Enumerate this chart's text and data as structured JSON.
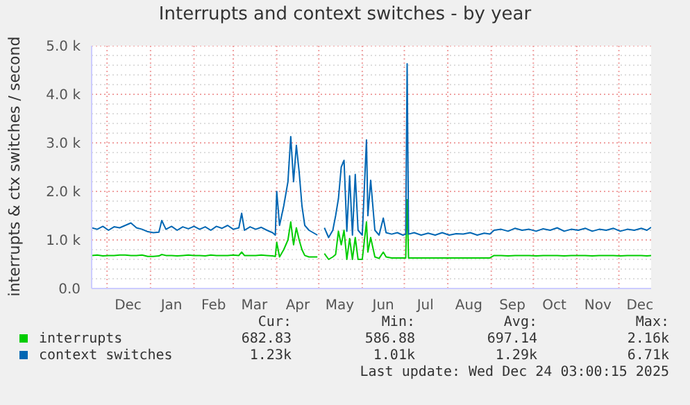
{
  "chart_data": {
    "type": "line",
    "title": "Interrupts and context switches - by year",
    "ylabel": "interrupts & ctx switches / second",
    "x": [
      "2024-11-20",
      "2024-11-24",
      "2024-11-28",
      "2024-12-02",
      "2024-12-06",
      "2024-12-10",
      "2024-12-14",
      "2024-12-18",
      "2024-12-22",
      "2024-12-26",
      "2024-12-30",
      "2025-01-03",
      "2025-01-07",
      "2025-01-09",
      "2025-01-12",
      "2025-01-16",
      "2025-01-20",
      "2025-01-24",
      "2025-01-28",
      "2025-02-01",
      "2025-02-05",
      "2025-02-09",
      "2025-02-13",
      "2025-02-17",
      "2025-02-21",
      "2025-02-25",
      "2025-03-01",
      "2025-03-05",
      "2025-03-07",
      "2025-03-09",
      "2025-03-13",
      "2025-03-17",
      "2025-03-21",
      "2025-03-25",
      "2025-03-29",
      "2025-03-31",
      "2025-04-01",
      "2025-04-03",
      "2025-04-06",
      "2025-04-09",
      "2025-04-11",
      "2025-04-13",
      "2025-04-15",
      "2025-04-17",
      "2025-04-19",
      "2025-04-21",
      "2025-04-24",
      "2025-04-27",
      "2025-04-30",
      "2025-05-02",
      "2025-05-05",
      "2025-05-08",
      "2025-05-11",
      "2025-05-13",
      "2025-05-15",
      "2025-05-17",
      "2025-05-19",
      "2025-05-21",
      "2025-05-23",
      "2025-05-25",
      "2025-05-27",
      "2025-05-29",
      "2025-06-01",
      "2025-06-04",
      "2025-06-05",
      "2025-06-07",
      "2025-06-10",
      "2025-06-13",
      "2025-06-16",
      "2025-06-18",
      "2025-06-22",
      "2025-06-26",
      "2025-06-30",
      "2025-07-02",
      "2025-07-03",
      "2025-07-04",
      "2025-07-08",
      "2025-07-13",
      "2025-07-18",
      "2025-07-23",
      "2025-07-28",
      "2025-08-02",
      "2025-08-07",
      "2025-08-12",
      "2025-08-17",
      "2025-08-22",
      "2025-08-27",
      "2025-08-31",
      "2025-09-03",
      "2025-09-08",
      "2025-09-13",
      "2025-09-18",
      "2025-09-23",
      "2025-09-28",
      "2025-10-03",
      "2025-10-08",
      "2025-10-13",
      "2025-10-18",
      "2025-10-23",
      "2025-10-28",
      "2025-11-02",
      "2025-11-07",
      "2025-11-12",
      "2025-11-17",
      "2025-11-22",
      "2025-11-27",
      "2025-12-02",
      "2025-12-07",
      "2025-12-12",
      "2025-12-17",
      "2025-12-21",
      "2025-12-24"
    ],
    "series": [
      {
        "name": "interrupts",
        "color": "#00cc00",
        "values": [
          680,
          690,
          670,
          680,
          680,
          690,
          690,
          680,
          680,
          690,
          660,
          660,
          670,
          700,
          680,
          680,
          670,
          680,
          690,
          680,
          680,
          670,
          690,
          680,
          680,
          680,
          690,
          680,
          750,
          680,
          680,
          680,
          690,
          680,
          670,
          660,
          950,
          650,
          800,
          1000,
          1370,
          900,
          1250,
          1000,
          800,
          680,
          650,
          650,
          650,
          null,
          720,
          600,
          650,
          700,
          1180,
          900,
          1200,
          600,
          1030,
          600,
          1050,
          600,
          600,
          1370,
          750,
          1050,
          650,
          620,
          750,
          650,
          630,
          630,
          630,
          630,
          1830,
          630,
          630,
          630,
          630,
          630,
          630,
          630,
          630,
          630,
          630,
          630,
          630,
          630,
          680,
          680,
          670,
          680,
          680,
          680,
          670,
          680,
          680,
          680,
          670,
          680,
          680,
          680,
          670,
          680,
          680,
          680,
          670,
          680,
          680,
          680,
          670,
          680
        ]
      },
      {
        "name": "context switches",
        "color": "#0066b3",
        "values": [
          1250,
          1220,
          1280,
          1200,
          1270,
          1250,
          1300,
          1350,
          1250,
          1220,
          1170,
          1150,
          1160,
          1400,
          1220,
          1280,
          1200,
          1270,
          1230,
          1280,
          1220,
          1270,
          1200,
          1280,
          1240,
          1300,
          1220,
          1250,
          1550,
          1200,
          1270,
          1220,
          1260,
          1200,
          1150,
          1100,
          2000,
          1300,
          1700,
          2200,
          3130,
          2200,
          2950,
          2400,
          1700,
          1300,
          1200,
          1150,
          1100,
          null,
          1250,
          1050,
          1200,
          1500,
          1850,
          2500,
          2640,
          1180,
          2320,
          1100,
          2350,
          1200,
          1100,
          3060,
          1500,
          2230,
          1200,
          1100,
          1450,
          1150,
          1120,
          1150,
          1100,
          1120,
          4630,
          1120,
          1150,
          1100,
          1140,
          1100,
          1150,
          1100,
          1130,
          1120,
          1150,
          1100,
          1140,
          1120,
          1200,
          1220,
          1180,
          1240,
          1200,
          1220,
          1180,
          1230,
          1200,
          1250,
          1180,
          1220,
          1200,
          1240,
          1180,
          1220,
          1200,
          1240,
          1180,
          1220,
          1200,
          1240,
          1200,
          1260
        ]
      }
    ],
    "xlim": [
      "2024-11-20",
      "2025-12-24"
    ],
    "xticks": [
      {
        "value": "2024-12-01",
        "label": null
      },
      {
        "value": "2024-12-16",
        "label": "Dec"
      },
      {
        "value": "2025-01-01",
        "label": null
      },
      {
        "value": "2025-01-16",
        "label": "Jan"
      },
      {
        "value": "2025-02-01",
        "label": null
      },
      {
        "value": "2025-02-15",
        "label": "Feb"
      },
      {
        "value": "2025-03-01",
        "label": null
      },
      {
        "value": "2025-03-16",
        "label": "Mar"
      },
      {
        "value": "2025-04-01",
        "label": null
      },
      {
        "value": "2025-04-16",
        "label": "Apr"
      },
      {
        "value": "2025-05-01",
        "label": null
      },
      {
        "value": "2025-05-16",
        "label": "May"
      },
      {
        "value": "2025-06-01",
        "label": null
      },
      {
        "value": "2025-06-16",
        "label": "Jun"
      },
      {
        "value": "2025-07-01",
        "label": null
      },
      {
        "value": "2025-07-16",
        "label": "Jul"
      },
      {
        "value": "2025-08-01",
        "label": null
      },
      {
        "value": "2025-08-16",
        "label": "Aug"
      },
      {
        "value": "2025-09-01",
        "label": null
      },
      {
        "value": "2025-09-16",
        "label": "Sep"
      },
      {
        "value": "2025-10-01",
        "label": null
      },
      {
        "value": "2025-10-16",
        "label": "Oct"
      },
      {
        "value": "2025-11-01",
        "label": null
      },
      {
        "value": "2025-11-16",
        "label": "Nov"
      },
      {
        "value": "2025-12-01",
        "label": null
      },
      {
        "value": "2025-12-16",
        "label": "Dec"
      }
    ],
    "ylim": [
      0,
      5000
    ],
    "yticks": [
      {
        "value": 0,
        "label": "0.0"
      },
      {
        "value": 200,
        "label": null
      },
      {
        "value": 400,
        "label": null
      },
      {
        "value": 600,
        "label": null
      },
      {
        "value": 800,
        "label": null
      },
      {
        "value": 1000,
        "label": "1.0 k"
      },
      {
        "value": 1200,
        "label": null
      },
      {
        "value": 1400,
        "label": null
      },
      {
        "value": 1600,
        "label": null
      },
      {
        "value": 1800,
        "label": null
      },
      {
        "value": 2000,
        "label": "2.0 k"
      },
      {
        "value": 2200,
        "label": null
      },
      {
        "value": 2400,
        "label": null
      },
      {
        "value": 2600,
        "label": null
      },
      {
        "value": 2800,
        "label": null
      },
      {
        "value": 3000,
        "label": "3.0 k"
      },
      {
        "value": 3200,
        "label": null
      },
      {
        "value": 3400,
        "label": null
      },
      {
        "value": 3600,
        "label": null
      },
      {
        "value": 3800,
        "label": null
      },
      {
        "value": 4000,
        "label": "4.0 k"
      },
      {
        "value": 4200,
        "label": null
      },
      {
        "value": 4400,
        "label": null
      },
      {
        "value": 4600,
        "label": null
      },
      {
        "value": 4800,
        "label": null
      },
      {
        "value": 5000,
        "label": "5.0 k"
      }
    ],
    "grid": true,
    "legend": "bottom",
    "marker": "none",
    "line_style": "solid",
    "annotations": [
      "Cur:",
      "Min:",
      "Avg:",
      "Max:",
      "682.83",
      "586.88",
      "697.14",
      "2.16k",
      "1.23k",
      "1.01k",
      "1.29k",
      "6.71k",
      "Last update: Wed Dec 24 03:00:15 2025"
    ]
  }
}
